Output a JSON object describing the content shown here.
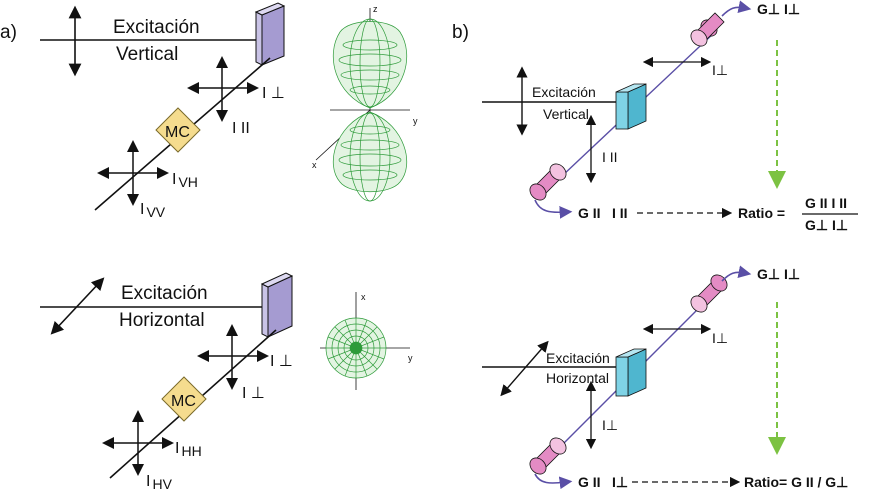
{
  "panel_a": {
    "letter": "a)",
    "vertical": {
      "excitation": "Excitación",
      "polarization": "Vertical",
      "emission_perp": "I ⊥",
      "emission_par": "I II",
      "monochromator": "MC",
      "detect_h": "I",
      "detect_h_sub": "VH",
      "detect_v": "I",
      "detect_v_sub": "VV",
      "axis_z": "z",
      "axis_y": "y",
      "axis_x": "x"
    },
    "horizontal": {
      "excitation": "Excitación",
      "polarization": "Horizontal",
      "emission_perp1": "I ⊥",
      "emission_perp2": "I ⊥",
      "monochromator": "MC",
      "detect_h": "I",
      "detect_h_sub": "HH",
      "detect_v": "I",
      "detect_v_sub": "HV",
      "axis_x": "x",
      "axis_y": "y"
    }
  },
  "panel_b": {
    "letter": "b)",
    "vertical": {
      "excitation": "Excitación",
      "polarization": "Vertical",
      "top_detector": "G⊥ I⊥",
      "top_emission": "I⊥",
      "side_emission": "I II",
      "bottom_detector_g": "G II",
      "bottom_detector_i": "I II",
      "ratio_label": "Ratio =",
      "ratio_num": "G II I II",
      "ratio_den": "G⊥ I⊥"
    },
    "horizontal": {
      "excitation": "Excitación",
      "polarization": "Horizontal",
      "top_detector": "G⊥ I⊥",
      "top_emission": "I⊥",
      "side_emission": "I⊥",
      "bottom_detector_g": "G II",
      "bottom_detector_i": "I⊥",
      "ratio": "Ratio= G II / G⊥"
    }
  },
  "colors": {
    "polarizer_a": "#c9c3e6",
    "mc_box": "#f5dc8e",
    "cuvette_b": "#7fd3e6",
    "detector_b": "#e48bc4",
    "beam_b": "#5a4fa6",
    "dashed_green": "#7cc242",
    "mesh_green": "#2e9b3a"
  }
}
